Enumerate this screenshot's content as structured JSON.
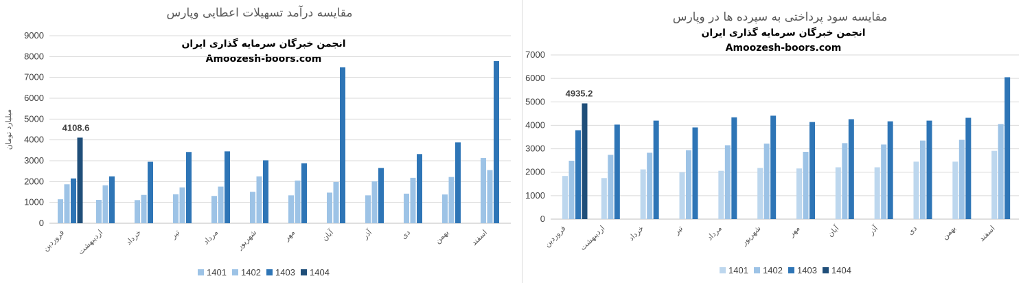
{
  "chart_data": [
    {
      "type": "bar",
      "title": "مقایسه درآمد تسهیلات اعطایی وپارس",
      "watermark_line1": "انجمن خبرگان سرمایه گذاری ایران",
      "watermark_line2": "Amoozesh-boors.com",
      "ylabel": "میلیارد تومان",
      "xlabel": "",
      "ylim": [
        0,
        9000
      ],
      "yticks": [
        "0",
        "1000",
        "2000",
        "3000",
        "4000",
        "5000",
        "6000",
        "7000",
        "8000",
        "9000"
      ],
      "grid": true,
      "legend_position": "bottom",
      "categories": [
        "فروردین",
        "اردیبهشت",
        "خرداد",
        "تیر",
        "مرداد",
        "شهریور",
        "مهر",
        "آبان",
        "آذر",
        "دی",
        "بهمن",
        "اسفند"
      ],
      "series": [
        {
          "name": "1401",
          "color": "#9dc3e6",
          "values": [
            1150,
            1120,
            1110,
            1390,
            1310,
            1510,
            1340,
            1470,
            1340,
            1420,
            1380,
            3130
          ]
        },
        {
          "name": "1402",
          "color": "#9dc3e6",
          "values": [
            1870,
            1820,
            1360,
            1720,
            1760,
            2250,
            2050,
            1980,
            2010,
            2180,
            2220,
            2550
          ]
        },
        {
          "name": "1403",
          "color": "#2e75b6",
          "values": [
            2150,
            2250,
            2950,
            3420,
            3450,
            3020,
            2880,
            7480,
            2650,
            3320,
            3880,
            7780
          ]
        },
        {
          "name": "1404",
          "color": "#1f4e79",
          "values": [
            4108.6,
            null,
            null,
            null,
            null,
            null,
            null,
            null,
            null,
            null,
            null,
            null
          ]
        }
      ],
      "data_labels": [
        {
          "series": "1404",
          "category": "فروردین",
          "text": "4108.6"
        }
      ]
    },
    {
      "type": "bar",
      "title": "مقایسه سود پرداختی به سپرده ها در وپارس",
      "watermark_line1": "انجمن خبرگان سرمایه گذاری ایران",
      "watermark_line2": "Amoozesh-boors.com",
      "ylabel": "",
      "xlabel": "",
      "ylim": [
        0,
        7000
      ],
      "yticks": [
        "0",
        "1000",
        "2000",
        "3000",
        "4000",
        "5000",
        "6000",
        "7000"
      ],
      "grid": true,
      "legend_position": "bottom",
      "categories": [
        "فروردین",
        "اردیبهشت",
        "خرداد",
        "تیر",
        "مرداد",
        "شهریور",
        "مهر",
        "آبان",
        "آذر",
        "دی",
        "بهمن",
        "اسفند"
      ],
      "series": [
        {
          "name": "1401",
          "color": "#bdd7ee",
          "values": [
            1840,
            1750,
            2120,
            2000,
            2060,
            2180,
            2160,
            2210,
            2210,
            2450,
            2450,
            2910
          ]
        },
        {
          "name": "1402",
          "color": "#9dc3e6",
          "values": [
            2490,
            2740,
            2830,
            2940,
            3150,
            3220,
            2870,
            3240,
            3180,
            3350,
            3380,
            4050
          ]
        },
        {
          "name": "1403",
          "color": "#2e75b6",
          "values": [
            3790,
            4030,
            4200,
            3910,
            4340,
            4410,
            4140,
            4260,
            4170,
            4200,
            4320,
            6050
          ]
        },
        {
          "name": "1404",
          "color": "#1f4e79",
          "values": [
            4935.2,
            null,
            null,
            null,
            null,
            null,
            null,
            null,
            null,
            null,
            null,
            null
          ]
        }
      ],
      "data_labels": [
        {
          "series": "1404",
          "category": "فروردین",
          "text": "4935.2"
        }
      ]
    }
  ]
}
